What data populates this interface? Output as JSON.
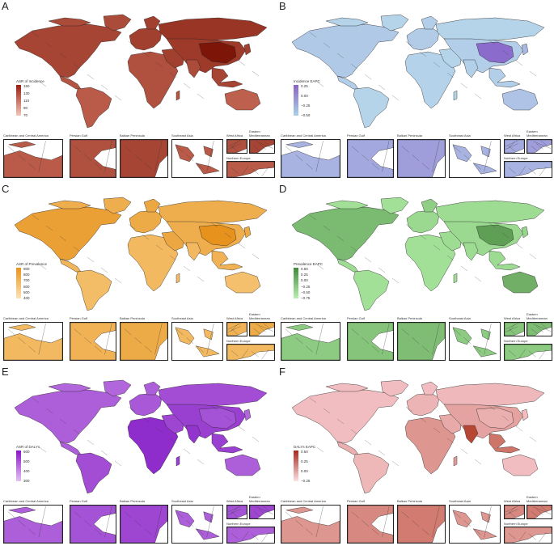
{
  "panels": [
    {
      "letter": "A",
      "legend_title": "ASR of Incidence",
      "legend_ticks": [
        "150",
        "130",
        "110",
        "90",
        "70"
      ],
      "ramp": [
        "#f3c7b8",
        "#9b1d10"
      ],
      "base": "#b3402b",
      "hi": "#7d1508",
      "lo": "#d9806a",
      "insets": [
        "Caribbean and Central America",
        "Persian Gulf",
        "Balkan Peninsula",
        "Southeast Asia",
        "West Africa",
        "Eastern Mediterranean",
        "Northern Europe"
      ]
    },
    {
      "letter": "B",
      "legend_title": "Incidence EAPC",
      "legend_ticks": [
        "0.25",
        "0.00",
        "−0.25",
        "−0.50"
      ],
      "ramp": [
        "#a9d2e8",
        "#8a64c8"
      ],
      "base": "#e9f1f8",
      "hi": "#8b6bcc",
      "lo": "#b7d9ec",
      "insets": [
        "Caribbean and Central America",
        "Persian Gulf",
        "Balkan Peninsula",
        "Southeast Asia",
        "West Africa",
        "Eastern Mediterranean",
        "Northern Europe"
      ]
    },
    {
      "letter": "C",
      "legend_title": "ASR of Prevalence",
      "legend_ticks": [
        "900",
        "800",
        "700",
        "600",
        "500",
        "400"
      ],
      "ramp": [
        "#fde3b6",
        "#e8951d"
      ],
      "base": "#f4b44c",
      "hi": "#e48b10",
      "lo": "#f9d18c",
      "insets": [
        "Caribbean and Central America",
        "Persian Gulf",
        "Balkan Peninsula",
        "Southeast Asia",
        "West Africa",
        "Eastern Mediterranean",
        "Northern Europe"
      ]
    },
    {
      "letter": "D",
      "legend_title": "Prevalence EAPC",
      "legend_ticks": [
        "0.50",
        "0.25",
        "0.00",
        "−0.25",
        "−0.50",
        "−0.75"
      ],
      "ramp": [
        "#b9f0b1",
        "#3f8a3a"
      ],
      "base": "#eef6ea",
      "hi": "#5f9e55",
      "lo": "#a5e39b",
      "insets": [
        "Caribbean and Central America",
        "Persian Gulf",
        "Balkan Peninsula",
        "Southeast Asia",
        "West Africa",
        "Eastern Mediterranean",
        "Northern Europe"
      ]
    },
    {
      "letter": "E",
      "legend_title": "ASR of DALYs",
      "legend_ticks": [
        "600",
        "500",
        "400",
        "300"
      ],
      "ramp": [
        "#e4c2f4",
        "#8a14c8"
      ],
      "base": "#a94dd8",
      "hi": "#7b0ec2",
      "lo": "#c88be6",
      "insets": [
        "Caribbean and Central America",
        "Persian Gulf",
        "Balkan Peninsula",
        "Southeast Asia",
        "West Africa",
        "Eastern Mediterranean",
        "Northern Europe"
      ]
    },
    {
      "letter": "F",
      "legend_title": "DALYs EAPC",
      "legend_ticks": [
        "0.50",
        "0.25",
        "0.00",
        "−0.25"
      ],
      "ramp": [
        "#fde0e3",
        "#a8271c"
      ],
      "base": "#fbe7ea",
      "hi": "#b4402a",
      "lo": "#f4c4c8",
      "insets": [
        "Caribbean and Central America",
        "Persian Gulf",
        "Balkan Peninsula",
        "Southeast Asia",
        "West Africa",
        "Eastern Mediterranean",
        "Northern Europe"
      ]
    }
  ]
}
